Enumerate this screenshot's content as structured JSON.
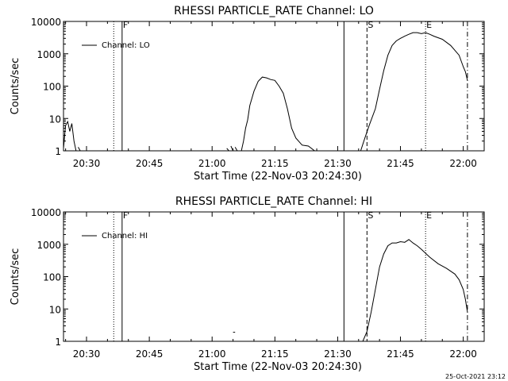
{
  "chart_data": [
    {
      "type": "line",
      "title": "RHESSI PARTICLE_RATE Channel: LO",
      "xlabel": "Start Time (22-Nov-03 20:24:30)",
      "ylabel": "Counts/sec",
      "x_ticks": [
        "20:30",
        "20:45",
        "21:00",
        "21:15",
        "21:30",
        "21:45",
        "22:00"
      ],
      "y_ticks": [
        "1",
        "10",
        "100",
        "1000",
        "10000"
      ],
      "yscale": "log",
      "xlim": [
        "20:24:30",
        "22:05:00"
      ],
      "ylim": [
        1,
        10000
      ],
      "grid": false,
      "legend": {
        "entries": [
          "Channel: LO"
        ],
        "position": "top-left"
      },
      "markers": [
        {
          "time": "20:36:30",
          "style": "dotted",
          "label": ""
        },
        {
          "time": "20:38:30",
          "style": "solid",
          "label": "F"
        },
        {
          "time": "21:31:30",
          "style": "solid",
          "label": ""
        },
        {
          "time": "21:37:00",
          "style": "dashed",
          "label": "S"
        },
        {
          "time": "21:51:00",
          "style": "dotted",
          "label": "E"
        },
        {
          "time": "22:01:00",
          "style": "dash-dot",
          "label": ""
        }
      ],
      "series": [
        {
          "name": "Channel: LO",
          "segments": [
            [
              [
                "20:24:30",
                1.2
              ],
              [
                "20:25:00",
                6
              ],
              [
                "20:25:30",
                8
              ],
              [
                "20:26:00",
                4
              ],
              [
                "20:26:30",
                7
              ],
              [
                "20:27:00",
                2
              ],
              [
                "20:27:30",
                1.0
              ]
            ],
            [
              [
                "20:28:00",
                1.3
              ],
              [
                "20:28:30",
                1.0
              ]
            ],
            [
              [
                "21:03:30",
                1.2
              ],
              [
                "21:04:00",
                1.0
              ]
            ],
            [
              [
                "21:04:30",
                1.4
              ],
              [
                "21:05:00",
                1.0
              ]
            ],
            [
              [
                "21:05:30",
                1.3
              ],
              [
                "21:06:00",
                1.0
              ]
            ],
            [
              [
                "21:07:00",
                1.0
              ],
              [
                "21:07:30",
                2
              ],
              [
                "21:08:00",
                5
              ],
              [
                "21:08:30",
                9
              ],
              [
                "21:09:00",
                25
              ],
              [
                "21:10:00",
                70
              ],
              [
                "21:11:00",
                140
              ],
              [
                "21:12:00",
                190
              ],
              [
                "21:13:00",
                180
              ],
              [
                "21:14:00",
                160
              ],
              [
                "21:15:00",
                150
              ],
              [
                "21:16:00",
                100
              ],
              [
                "21:17:00",
                60
              ],
              [
                "21:18:00",
                20
              ],
              [
                "21:19:00",
                5
              ],
              [
                "21:20:00",
                2.5
              ],
              [
                "21:21:30",
                1.5
              ],
              [
                "21:23:00",
                1.4
              ],
              [
                "21:24:30",
                1.0
              ]
            ],
            [
              [
                "21:35:30",
                1.0
              ],
              [
                "21:36:30",
                2.5
              ],
              [
                "21:37:30",
                6
              ],
              [
                "21:39:00",
                20
              ],
              [
                "21:40:00",
                80
              ],
              [
                "21:41:00",
                300
              ],
              [
                "21:42:00",
                900
              ],
              [
                "21:43:00",
                1800
              ],
              [
                "21:44:00",
                2500
              ],
              [
                "21:45:00",
                3000
              ],
              [
                "21:46:00",
                3500
              ],
              [
                "21:47:00",
                4000
              ],
              [
                "21:48:00",
                4500
              ],
              [
                "21:49:00",
                4500
              ],
              [
                "21:50:00",
                4200
              ],
              [
                "21:51:00",
                4500
              ],
              [
                "21:52:00",
                4000
              ],
              [
                "21:53:00",
                3500
              ],
              [
                "21:55:00",
                2800
              ],
              [
                "21:57:00",
                1800
              ],
              [
                "21:59:00",
                900
              ],
              [
                "22:00:00",
                400
              ],
              [
                "22:00:30",
                280
              ],
              [
                "22:01:00",
                150
              ]
            ]
          ]
        }
      ]
    },
    {
      "type": "line",
      "title": "RHESSI PARTICLE_RATE Channel: HI",
      "xlabel": "Start Time (22-Nov-03 20:24:30)",
      "ylabel": "Counts/sec",
      "x_ticks": [
        "20:30",
        "20:45",
        "21:00",
        "21:15",
        "21:30",
        "21:45",
        "22:00"
      ],
      "y_ticks": [
        "1",
        "10",
        "100",
        "1000",
        "10000"
      ],
      "yscale": "log",
      "xlim": [
        "20:24:30",
        "22:05:00"
      ],
      "ylim": [
        1,
        10000
      ],
      "grid": false,
      "legend": {
        "entries": [
          "Channel: HI"
        ],
        "position": "top-left"
      },
      "markers": [
        {
          "time": "20:36:30",
          "style": "dotted",
          "label": ""
        },
        {
          "time": "20:38:30",
          "style": "solid",
          "label": "F"
        },
        {
          "time": "21:31:30",
          "style": "solid",
          "label": ""
        },
        {
          "time": "21:37:00",
          "style": "dashed",
          "label": "S"
        },
        {
          "time": "21:51:00",
          "style": "dotted",
          "label": "E"
        },
        {
          "time": "22:01:00",
          "style": "dash-dot",
          "label": ""
        }
      ],
      "series": [
        {
          "name": "Channel: HI",
          "segments": [
            [
              [
                "21:05:00",
                1.9
              ],
              [
                "21:05:30",
                1.9
              ]
            ],
            [
              [
                "21:36:00",
                1.0
              ],
              [
                "21:37:00",
                2
              ],
              [
                "21:38:00",
                8
              ],
              [
                "21:39:00",
                40
              ],
              [
                "21:40:00",
                200
              ],
              [
                "21:41:00",
                500
              ],
              [
                "21:42:00",
                900
              ],
              [
                "21:43:00",
                1100
              ],
              [
                "21:44:00",
                1100
              ],
              [
                "21:45:00",
                1200
              ],
              [
                "21:46:00",
                1150
              ],
              [
                "21:47:00",
                1400
              ],
              [
                "21:48:00",
                1100
              ],
              [
                "21:49:00",
                900
              ],
              [
                "21:50:00",
                700
              ],
              [
                "21:52:00",
                400
              ],
              [
                "21:54:00",
                250
              ],
              [
                "21:56:00",
                180
              ],
              [
                "21:58:00",
                120
              ],
              [
                "21:59:00",
                80
              ],
              [
                "22:00:00",
                40
              ],
              [
                "22:00:30",
                20
              ],
              [
                "22:01:00",
                8
              ]
            ]
          ]
        }
      ]
    }
  ],
  "timestamp": "25-Oct-2021 23:12"
}
